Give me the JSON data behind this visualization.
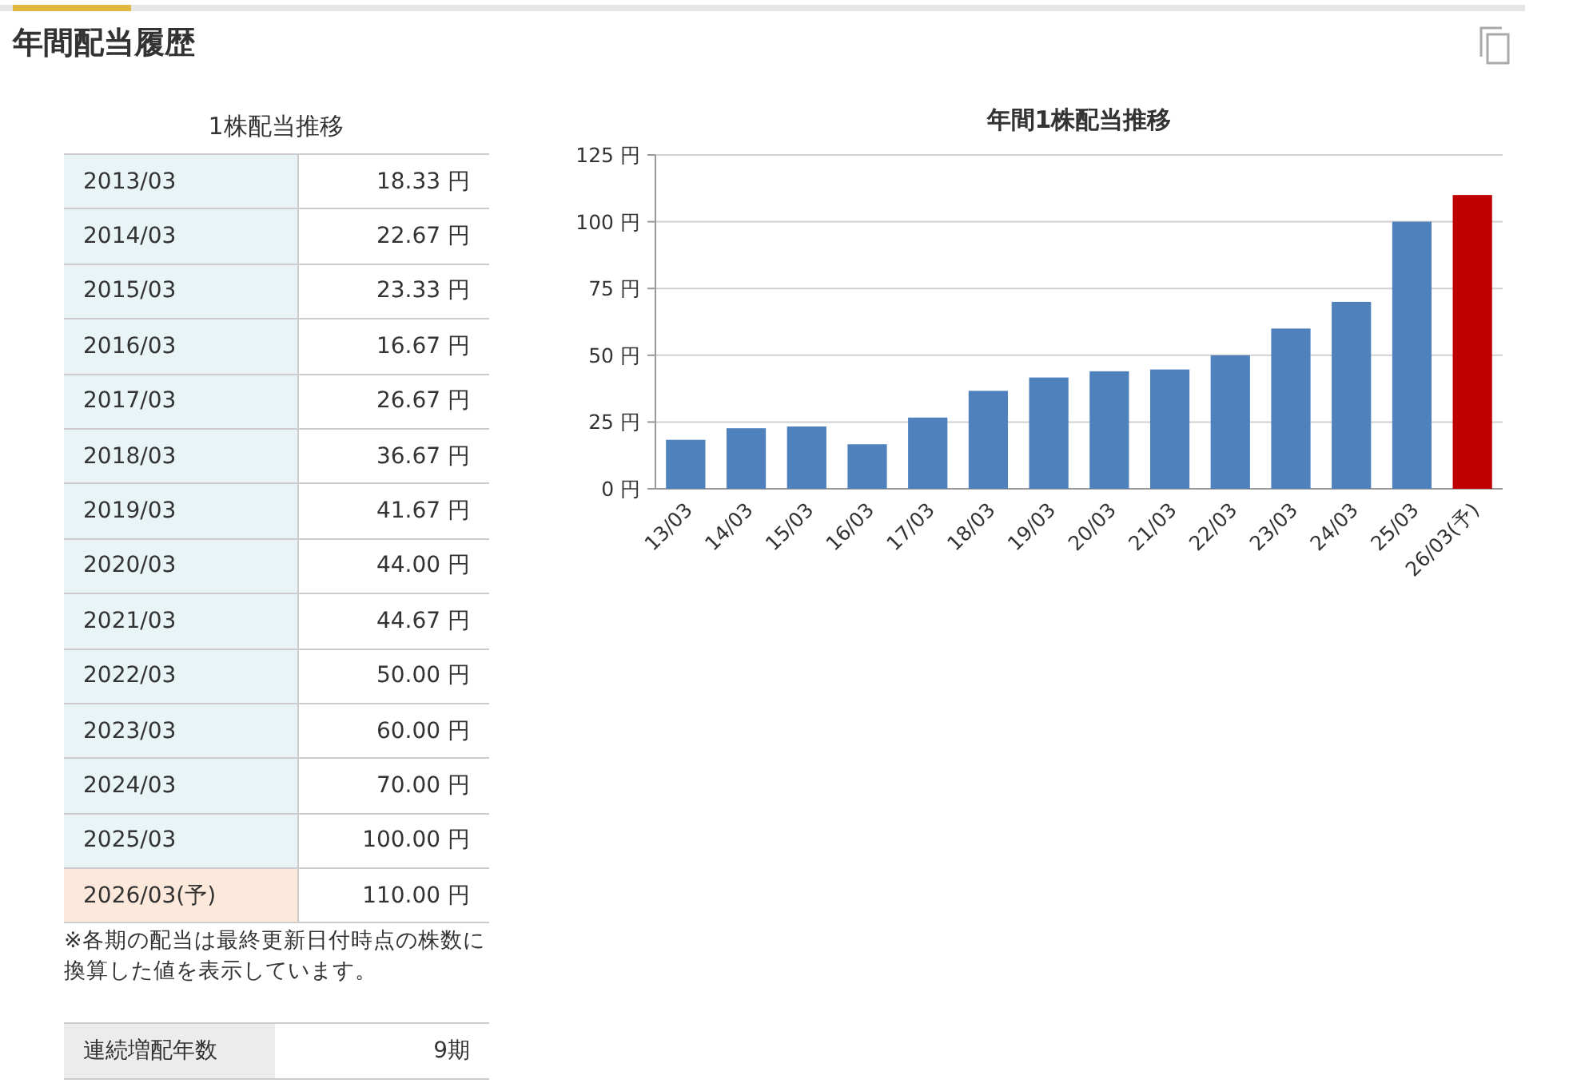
{
  "chart_data": [
    {
      "type": "other",
      "title": "年間配当履歴",
      "subtitle": "1株配当推移",
      "categories": [
        "2013/03",
        "2014/03",
        "2015/03",
        "2016/03",
        "2017/03",
        "2018/03",
        "2019/03",
        "2020/03",
        "2021/03",
        "2022/03",
        "2023/03",
        "2024/03",
        "2025/03",
        "2026/03(予)"
      ],
      "values": [
        18.33,
        22.67,
        23.33,
        16.67,
        26.67,
        36.67,
        41.67,
        44.0,
        44.67,
        50.0,
        60.0,
        70.0,
        100.0,
        110.0
      ],
      "value_labels": [
        "18.33 円",
        "22.67 円",
        "23.33 円",
        "16.67 円",
        "26.67 円",
        "36.67 円",
        "41.67 円",
        "44.00 円",
        "44.67 円",
        "50.00 円",
        "60.00 円",
        "70.00 円",
        "100.00 円",
        "110.00 円"
      ],
      "annotations": [
        "※各期の配当は最終更新日付時点の株数に換算した値を表示しています。",
        "連続増配年数",
        "9期"
      ]
    },
    {
      "type": "bar",
      "title": "年間1株配当推移",
      "categories": [
        "13/03",
        "14/03",
        "15/03",
        "16/03",
        "17/03",
        "18/03",
        "19/03",
        "20/03",
        "21/03",
        "22/03",
        "23/03",
        "24/03",
        "25/03",
        "26/03(予)"
      ],
      "values": [
        18.33,
        22.67,
        23.33,
        16.67,
        26.67,
        36.67,
        41.67,
        44.0,
        44.67,
        50.0,
        60.0,
        70.0,
        100.0,
        110.0
      ],
      "colors": [
        "#4f81bd",
        "#4f81bd",
        "#4f81bd",
        "#4f81bd",
        "#4f81bd",
        "#4f81bd",
        "#4f81bd",
        "#4f81bd",
        "#4f81bd",
        "#4f81bd",
        "#4f81bd",
        "#4f81bd",
        "#4f81bd",
        "#c00000"
      ],
      "ylim": [
        0,
        125
      ],
      "yticks": [
        {
          "value": 0,
          "label": "0 円"
        },
        {
          "value": 25,
          "label": "25 円"
        },
        {
          "value": 50,
          "label": "50 円"
        },
        {
          "value": 75,
          "label": "75 円"
        },
        {
          "value": 100,
          "label": "100 円"
        },
        {
          "value": 125,
          "label": "125 円"
        }
      ],
      "grid": "y"
    }
  ]
}
